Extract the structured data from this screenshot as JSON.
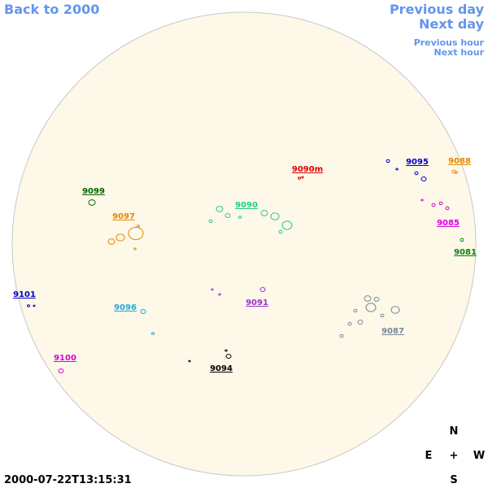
{
  "navigation": {
    "back": "Back to 2000",
    "previous_day": "Previous day",
    "next_day": "Next day",
    "previous_hour": "Previous hour",
    "next_hour": "Next hour"
  },
  "regions": [
    {
      "label": "9088",
      "color": "#e08a00"
    },
    {
      "label": "9095",
      "color": "#0000cc"
    },
    {
      "label": "9090m",
      "color": "#dd0000"
    },
    {
      "label": "9099",
      "color": "#006400"
    },
    {
      "label": "9090",
      "color": "#22cc88"
    },
    {
      "label": "9097",
      "color": "#e08a00"
    },
    {
      "label": "9085",
      "color": "#dd00dd"
    },
    {
      "label": "9081",
      "color": "#008800"
    },
    {
      "label": "9101",
      "color": "#0000cc"
    },
    {
      "label": "9091",
      "color": "#9933cc"
    },
    {
      "label": "9096",
      "color": "#22aadd"
    },
    {
      "label": "9087",
      "color": "#778899"
    },
    {
      "label": "9100",
      "color": "#dd00dd"
    },
    {
      "label": "9094",
      "color": "#000000"
    }
  ],
  "compass": {
    "north": "N",
    "east": "E",
    "center": "+",
    "west": "W",
    "south": "S"
  },
  "timestamp": "2000-07-22T13:15:31"
}
